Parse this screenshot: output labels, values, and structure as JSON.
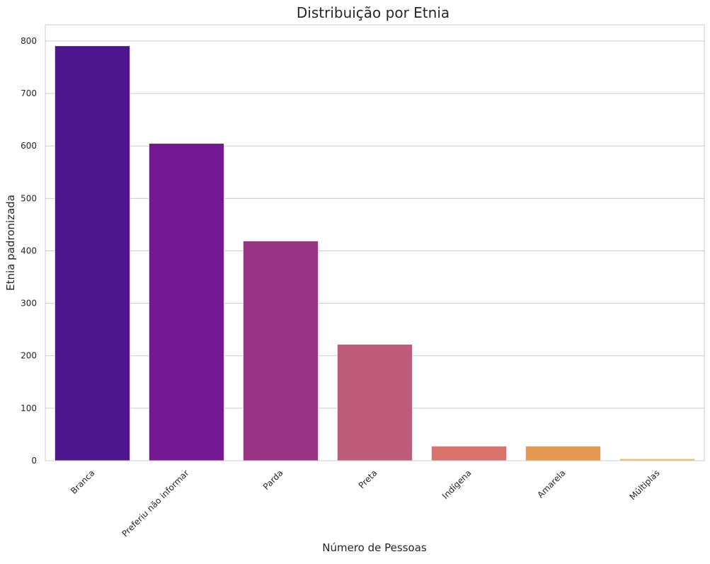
{
  "chart_data": {
    "type": "bar",
    "title": "Distribuição por Etnia",
    "xlabel": "Número de Pessoas",
    "ylabel": "Etnia padronizada",
    "categories": [
      "Branca",
      "Preferiu não informar",
      "Parda",
      "Preta",
      "Indígena",
      "Amarela",
      "Múltiplas"
    ],
    "values": [
      791,
      605,
      419,
      222,
      28,
      28,
      4
    ],
    "colors": [
      "#4d168d",
      "#741893",
      "#993485",
      "#bd5b78",
      "#d9746c",
      "#e59a54",
      "#f0c062"
    ],
    "ylim": [
      0,
      831
    ],
    "yticks": [
      0,
      100,
      200,
      300,
      400,
      500,
      600,
      700,
      800
    ],
    "grid": "y",
    "legend": "none"
  }
}
